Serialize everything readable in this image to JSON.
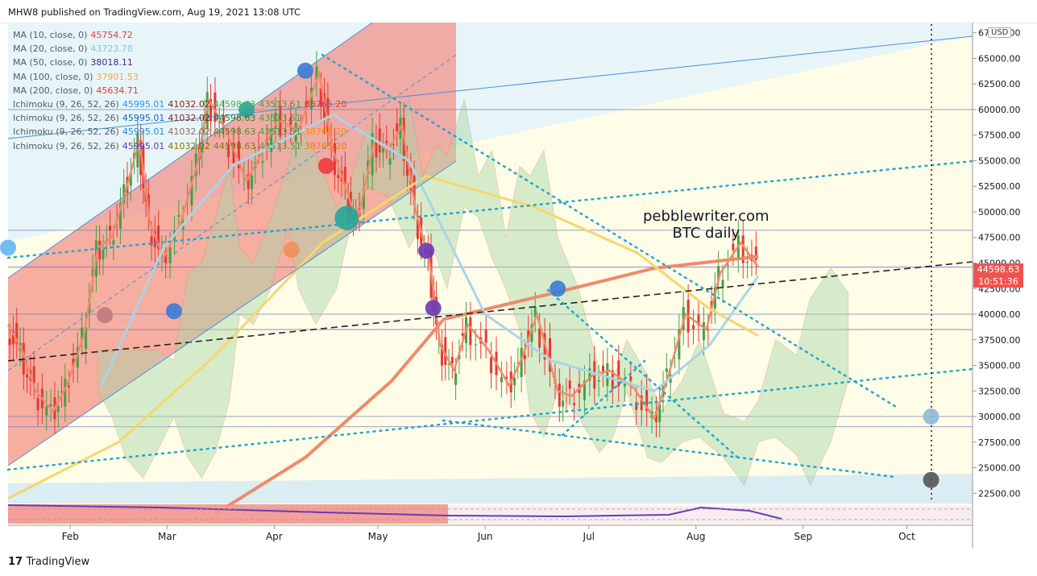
{
  "header": {
    "published": "MHW8 published on TradingView.com, Aug 19, 2021 13:08 UTC"
  },
  "annotation": {
    "line1": "pebblewriter.com",
    "line2": "BTC daily"
  },
  "branding": {
    "logo": "TradingView"
  },
  "currency_label": "USD",
  "legend": [
    {
      "name": "MA (10, close, 0)",
      "values": [
        "45754.72"
      ],
      "colors": [
        "#e53935"
      ]
    },
    {
      "name": "MA (20, close, 0)",
      "values": [
        "43723.78"
      ],
      "colors": [
        "#81c7e6"
      ]
    },
    {
      "name": "MA (50, close, 0)",
      "values": [
        "38018.11"
      ],
      "colors": [
        "#3f2b8f"
      ]
    },
    {
      "name": "MA (100, close, 0)",
      "values": [
        "37901.53"
      ],
      "colors": [
        "#f2a93b"
      ]
    },
    {
      "name": "MA (200, close, 0)",
      "values": [
        "45634.71"
      ],
      "colors": [
        "#e53935"
      ]
    },
    {
      "name": "Ichimoku (9, 26, 52, 26)",
      "values": [
        "45995.01",
        "41032.02",
        "44598.63",
        "43513.51",
        "38765.20"
      ],
      "colors": [
        "#2196f3",
        "#8b1a1a",
        "#4caf50",
        "#43a047",
        "#e53935"
      ]
    },
    {
      "name": "Ichimoku (9, 26, 52, 26)",
      "values": [
        "45995.01",
        "41032.02",
        "44598.63",
        "43513.51"
      ],
      "colors": [
        "#1565c0",
        "#8b1a1a",
        "#2e7d32",
        "#43a047"
      ]
    },
    {
      "name": "Ichimoku (9, 26, 52, 26)",
      "values": [
        "45995.01",
        "41032.02",
        "44598.63",
        "43513.51",
        "38765.20"
      ],
      "colors": [
        "#1e88e5",
        "#8d6e63",
        "#558b2f",
        "#43a047",
        "#fb8c00"
      ]
    },
    {
      "name": "Ichimoku (9, 26, 52, 26)",
      "values": [
        "45995.01",
        "41032.02",
        "44598.63",
        "43513.51",
        "38765.20"
      ],
      "colors": [
        "#5e35b1",
        "#8d6e00",
        "#827717",
        "#43a047",
        "#f57c00"
      ]
    }
  ],
  "last_price": {
    "value": "44598.63",
    "countdown": "10:51:36"
  },
  "chart_data": {
    "type": "candlestick",
    "title": "",
    "xlabel": "",
    "ylabel": "",
    "y_ticks": [
      "67500.00",
      "65000.00",
      "62500.00",
      "60000.00",
      "57500.00",
      "55000.00",
      "52500.00",
      "50000.00",
      "47500.00",
      "45000.00",
      "42500.00",
      "40000.00",
      "37500.00",
      "35000.00",
      "32500.00",
      "30000.00",
      "27500.00",
      "25000.00",
      "22500.00"
    ],
    "x_ticks": [
      "Feb",
      "Mar",
      "Apr",
      "May",
      "Jun",
      "Jul",
      "Aug",
      "Sep",
      "Oct"
    ],
    "ylim": [
      21500,
      68500
    ],
    "xlim": [
      "2021-01-14",
      "2021-10-20"
    ],
    "price_series": [
      [
        "2021-01-14",
        39000
      ],
      [
        "2021-01-18",
        36500
      ],
      [
        "2021-01-22",
        32500
      ],
      [
        "2021-01-27",
        30500
      ],
      [
        "2021-01-31",
        33000
      ],
      [
        "2021-02-05",
        38000
      ],
      [
        "2021-02-09",
        46500
      ],
      [
        "2021-02-13",
        47500
      ],
      [
        "2021-02-17",
        52000
      ],
      [
        "2021-02-21",
        57000
      ],
      [
        "2021-02-24",
        49000
      ],
      [
        "2021-02-28",
        45500
      ],
      [
        "2021-03-05",
        49000
      ],
      [
        "2021-03-10",
        55000
      ],
      [
        "2021-03-13",
        61000
      ],
      [
        "2021-03-18",
        58000
      ],
      [
        "2021-03-24",
        53000
      ],
      [
        "2021-03-28",
        55500
      ],
      [
        "2021-04-02",
        59000
      ],
      [
        "2021-04-08",
        58000
      ],
      [
        "2021-04-14",
        63500
      ],
      [
        "2021-04-18",
        56000
      ],
      [
        "2021-04-22",
        52000
      ],
      [
        "2021-04-25",
        49000
      ],
      [
        "2021-04-30",
        57000
      ],
      [
        "2021-05-04",
        56000
      ],
      [
        "2021-05-08",
        58500
      ],
      [
        "2021-05-12",
        50000
      ],
      [
        "2021-05-16",
        45000
      ],
      [
        "2021-05-19",
        37000
      ],
      [
        "2021-05-23",
        34500
      ],
      [
        "2021-05-27",
        39000
      ],
      [
        "2021-06-02",
        36500
      ],
      [
        "2021-06-08",
        33000
      ],
      [
        "2021-06-12",
        36000
      ],
      [
        "2021-06-16",
        40000
      ],
      [
        "2021-06-22",
        32500
      ],
      [
        "2021-06-26",
        32000
      ],
      [
        "2021-07-02",
        34000
      ],
      [
        "2021-07-07",
        34500
      ],
      [
        "2021-07-14",
        32800
      ],
      [
        "2021-07-20",
        29800
      ],
      [
        "2021-07-24",
        34000
      ],
      [
        "2021-07-29",
        40000
      ],
      [
        "2021-08-04",
        38500
      ],
      [
        "2021-08-08",
        44000
      ],
      [
        "2021-08-14",
        47000
      ],
      [
        "2021-08-19",
        44598
      ]
    ],
    "series": [
      {
        "name": "MA (200, close, 0)",
        "color": "#ef8a6a",
        "points": [
          [
            "2021-03-15",
            20500
          ],
          [
            "2021-04-10",
            26000
          ],
          [
            "2021-05-05",
            33500
          ],
          [
            "2021-05-20",
            39500
          ],
          [
            "2021-06-20",
            42000
          ],
          [
            "2021-07-20",
            44500
          ],
          [
            "2021-08-19",
            45634
          ]
        ]
      },
      {
        "name": "MA (100, close, 0)",
        "color": "#f5d76e",
        "points": [
          [
            "2021-01-14",
            22000
          ],
          [
            "2021-02-15",
            27500
          ],
          [
            "2021-03-15",
            36000
          ],
          [
            "2021-04-15",
            47000
          ],
          [
            "2021-05-15",
            53500
          ],
          [
            "2021-06-15",
            50500
          ],
          [
            "2021-07-15",
            46000
          ],
          [
            "2021-08-05",
            40500
          ],
          [
            "2021-08-19",
            37901
          ]
        ]
      },
      {
        "name": "MA (20, close, 0)",
        "color": "#a8d5e5",
        "points": [
          [
            "2021-02-10",
            33000
          ],
          [
            "2021-02-28",
            46500
          ],
          [
            "2021-03-20",
            54500
          ],
          [
            "2021-04-18",
            59500
          ],
          [
            "2021-05-10",
            55000
          ],
          [
            "2021-06-01",
            40000
          ],
          [
            "2021-06-20",
            35500
          ],
          [
            "2021-07-20",
            32500
          ],
          [
            "2021-08-05",
            37000
          ],
          [
            "2021-08-19",
            43723
          ]
        ]
      }
    ],
    "horizontal_levels": [
      60000,
      48200,
      44598,
      40000,
      38500,
      30000,
      29000
    ],
    "annotations_points": [
      {
        "date": "2021-04-10",
        "value": 63800,
        "color": "#3a7bd5"
      },
      {
        "date": "2021-03-24",
        "value": 60000,
        "color": "#26a69a"
      },
      {
        "date": "2021-04-16",
        "value": 54500,
        "color": "#ef3b3b"
      },
      {
        "date": "2021-04-22",
        "value": 49400,
        "color": "#26a69a"
      },
      {
        "date": "2021-04-06",
        "value": 46300,
        "color": "#f0905a"
      },
      {
        "date": "2021-01-14",
        "value": 46500,
        "color": "#64b5f6"
      },
      {
        "date": "2021-05-15",
        "value": 46200,
        "color": "#6a3ab5"
      },
      {
        "date": "2021-05-17",
        "value": 40600,
        "color": "#6a3ab5"
      },
      {
        "date": "2021-03-03",
        "value": 40300,
        "color": "#3a7bd5"
      },
      {
        "date": "2021-02-11",
        "value": 39900,
        "color": "#c07a80"
      },
      {
        "date": "2021-06-22",
        "value": 42500,
        "color": "#3a7bd5"
      },
      {
        "date": "2021-10-08",
        "value": 30000,
        "color": "#8fb8d8"
      },
      {
        "date": "2021-10-08",
        "value": 23800,
        "color": "#555"
      }
    ]
  }
}
